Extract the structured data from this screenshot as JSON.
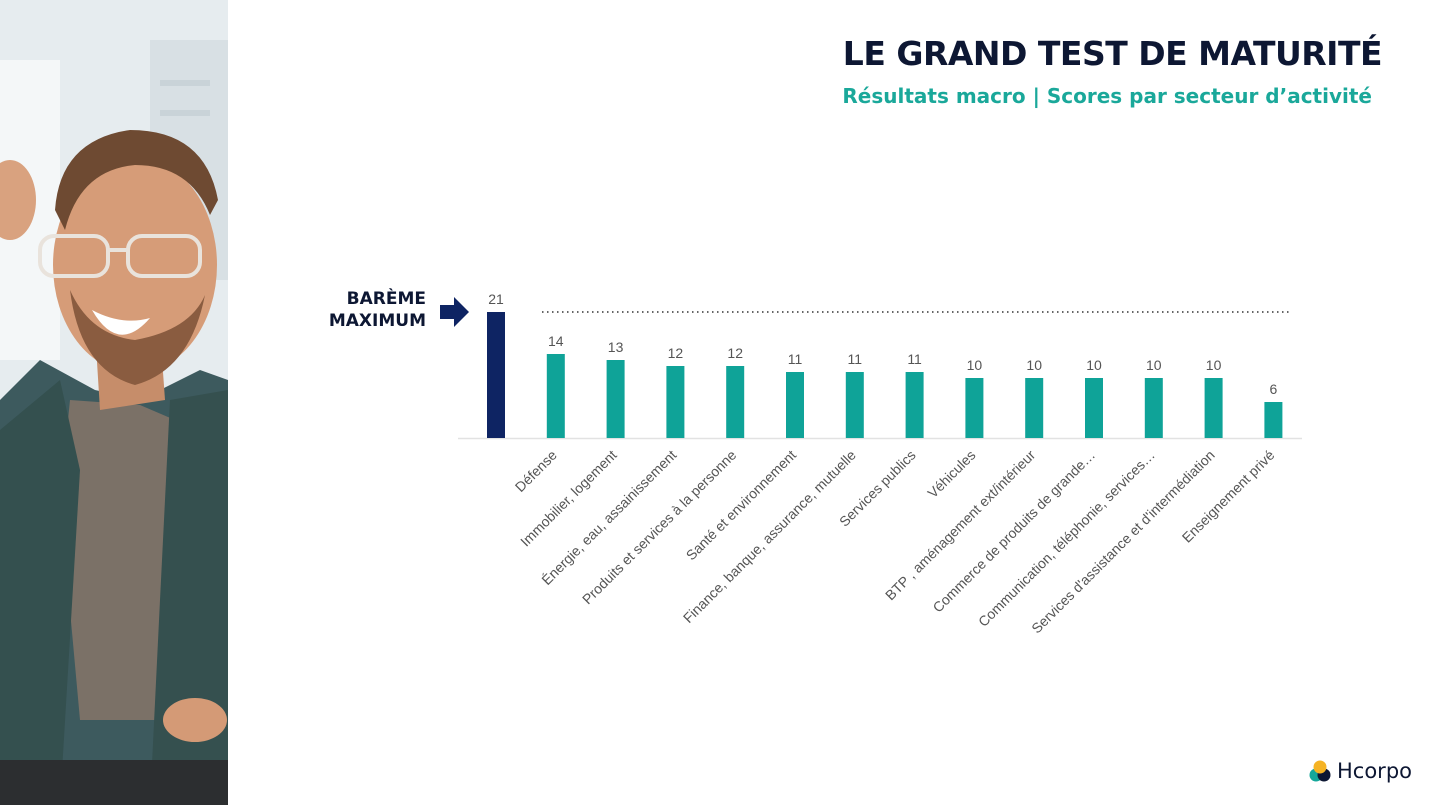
{
  "header": {
    "title": "LE GRAND TEST DE MATURITÉ",
    "subtitle": "Résultats macro | Scores par secteur d’activité"
  },
  "annotation": {
    "line1": "BARÈME",
    "line2": "MAXIMUM"
  },
  "logo": {
    "text": "Hcorpo",
    "icon": "hcorpo-logo-icon"
  },
  "colors": {
    "navy": "#0d1733",
    "teal": "#1aa89a",
    "max_bar": "#0e2463",
    "bar": "#0fa398"
  },
  "chart_data": {
    "type": "bar",
    "categories": [
      "",
      "Défense",
      "Immobilier, logement",
      "Énergie, eau, assainissement",
      "Produits et services à la personne",
      "Santé et environnement",
      "Finance, banque, assurance, mutuelle",
      "Services publics",
      "Véhicules",
      "BTP , aménagement ext/intérieur",
      "Commerce de produits de grande…",
      "Communication, téléphonie, services…",
      "Services d'assistance et d'intermédiation",
      "Enseignement privé"
    ],
    "values": [
      21,
      14,
      13,
      12,
      12,
      11,
      11,
      11,
      10,
      10,
      10,
      10,
      10,
      6
    ],
    "value_labels": [
      "21",
      "14",
      "13",
      "12",
      "12",
      "11",
      "11",
      "11",
      "10",
      "10",
      "10",
      "10",
      "10",
      "6"
    ],
    "highlight_index": 0,
    "reference_line": 21,
    "xlabel": "",
    "ylabel": "",
    "grid": false,
    "legend": "none"
  }
}
